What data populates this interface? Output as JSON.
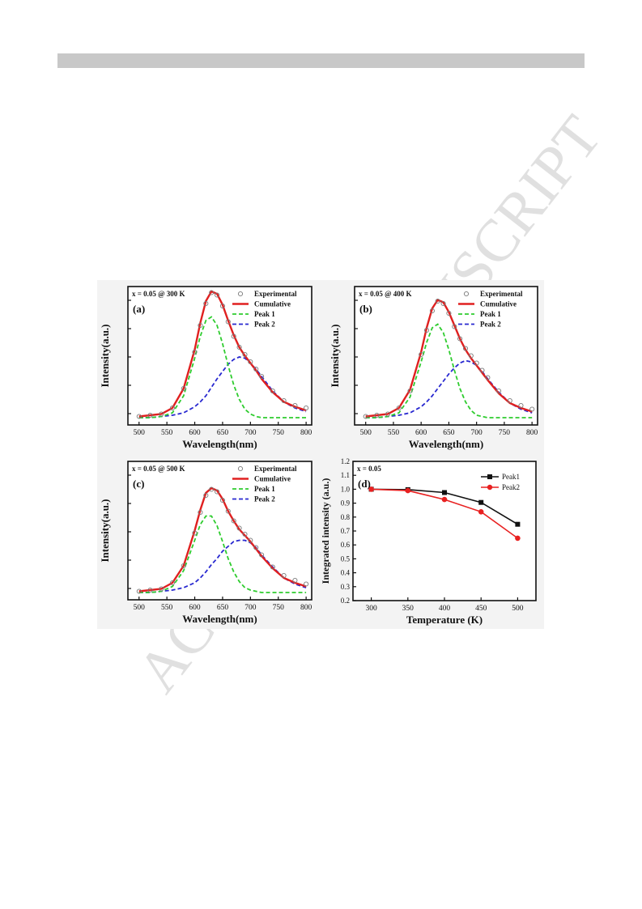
{
  "watermark": {
    "text": "ACCEPTED MANUSCRIPT",
    "color": "#d0d0d0"
  },
  "figure": {
    "background": "#f3f3f3",
    "colors": {
      "experimental": "#7a7a7a",
      "cumulative": "#e02020",
      "peak1": "#2ecc2e",
      "peak2": "#2828d0",
      "peak1_d": "#111111",
      "peak2_d": "#e82020"
    }
  },
  "chart_data": [
    {
      "type": "line",
      "panel_label": "(a)",
      "condition": "x = 0.05 @ 300 K",
      "xlabel": "Wavelength(nm)",
      "ylabel": "Intensity(a.u.)",
      "xlim": [
        480,
        810
      ],
      "ylim": [
        -0.06,
        1.08
      ],
      "xticks": [
        500,
        550,
        600,
        650,
        700,
        750,
        800
      ],
      "legend": [
        "Experimental",
        "Cumulative",
        "Peak 1",
        "Peak 2"
      ],
      "legend_position": "top-right",
      "x": [
        500,
        520,
        540,
        560,
        580,
        600,
        610,
        620,
        630,
        640,
        650,
        660,
        670,
        680,
        690,
        700,
        710,
        720,
        740,
        760,
        780,
        800
      ],
      "series": [
        {
          "name": "Experimental",
          "values": [
            0.01,
            0.02,
            0.03,
            0.08,
            0.24,
            0.54,
            0.76,
            0.94,
            1.03,
            1.01,
            0.92,
            0.79,
            0.67,
            0.58,
            0.52,
            0.46,
            0.4,
            0.34,
            0.22,
            0.14,
            0.1,
            0.08
          ]
        },
        {
          "name": "Cumulative",
          "values": [
            0.01,
            0.02,
            0.03,
            0.08,
            0.24,
            0.56,
            0.78,
            0.96,
            1.04,
            1.02,
            0.93,
            0.8,
            0.68,
            0.58,
            0.51,
            0.45,
            0.39,
            0.32,
            0.21,
            0.13,
            0.09,
            0.06
          ]
        },
        {
          "name": "Peak 1",
          "values": [
            0.0,
            0.0,
            0.01,
            0.04,
            0.18,
            0.49,
            0.67,
            0.8,
            0.83,
            0.76,
            0.61,
            0.43,
            0.27,
            0.15,
            0.07,
            0.03,
            0.01,
            0.0,
            0.0,
            0.0,
            0.0,
            0.0
          ]
        },
        {
          "name": "Peak 2",
          "values": [
            0.0,
            0.0,
            0.01,
            0.02,
            0.04,
            0.09,
            0.13,
            0.18,
            0.25,
            0.32,
            0.38,
            0.44,
            0.48,
            0.5,
            0.49,
            0.45,
            0.4,
            0.34,
            0.22,
            0.13,
            0.08,
            0.05
          ]
        }
      ]
    },
    {
      "type": "line",
      "panel_label": "(b)",
      "condition": "x = 0.05 @ 400 K",
      "xlabel": "Wavelength(nm)",
      "ylabel": "Intensity(a.u.)",
      "xlim": [
        480,
        810
      ],
      "ylim": [
        -0.06,
        1.08
      ],
      "xticks": [
        500,
        550,
        600,
        650,
        700,
        750,
        800
      ],
      "legend": [
        "Experimental",
        "Cumulative",
        "Peak 1",
        "Peak 2"
      ],
      "legend_position": "top-right",
      "x": [
        500,
        520,
        540,
        560,
        580,
        600,
        610,
        620,
        630,
        640,
        650,
        660,
        670,
        680,
        690,
        700,
        710,
        720,
        740,
        760,
        780,
        800
      ],
      "series": [
        {
          "name": "Experimental",
          "values": [
            0.01,
            0.02,
            0.03,
            0.08,
            0.22,
            0.52,
            0.72,
            0.88,
            0.96,
            0.94,
            0.86,
            0.75,
            0.65,
            0.57,
            0.51,
            0.45,
            0.39,
            0.33,
            0.22,
            0.14,
            0.1,
            0.07
          ]
        },
        {
          "name": "Cumulative",
          "values": [
            0.01,
            0.02,
            0.03,
            0.08,
            0.23,
            0.54,
            0.74,
            0.9,
            0.97,
            0.95,
            0.87,
            0.76,
            0.65,
            0.56,
            0.49,
            0.43,
            0.37,
            0.31,
            0.2,
            0.12,
            0.08,
            0.05
          ]
        },
        {
          "name": "Peak 1",
          "values": [
            0.0,
            0.0,
            0.01,
            0.04,
            0.17,
            0.46,
            0.62,
            0.74,
            0.77,
            0.7,
            0.56,
            0.39,
            0.24,
            0.13,
            0.06,
            0.02,
            0.01,
            0.0,
            0.0,
            0.0,
            0.0,
            0.0
          ]
        },
        {
          "name": "Peak 2",
          "values": [
            0.0,
            0.0,
            0.01,
            0.02,
            0.04,
            0.09,
            0.13,
            0.18,
            0.24,
            0.3,
            0.36,
            0.41,
            0.45,
            0.47,
            0.46,
            0.43,
            0.38,
            0.32,
            0.21,
            0.12,
            0.07,
            0.04
          ]
        }
      ]
    },
    {
      "type": "line",
      "panel_label": "(c)",
      "condition": "x = 0.05 @ 500 K",
      "xlabel": "Wavelength(nm)",
      "ylabel": "Intensity(a.u.)",
      "xlim": [
        480,
        810
      ],
      "ylim": [
        -0.06,
        1.08
      ],
      "xticks": [
        500,
        550,
        600,
        650,
        700,
        750,
        800
      ],
      "legend": [
        "Experimental",
        "Cumulative",
        "Peak 1",
        "Peak 2"
      ],
      "legend_position": "top-right",
      "x": [
        500,
        520,
        540,
        560,
        580,
        600,
        610,
        620,
        630,
        640,
        650,
        660,
        670,
        680,
        690,
        700,
        710,
        720,
        740,
        760,
        780,
        800
      ],
      "series": [
        {
          "name": "Experimental",
          "values": [
            0.01,
            0.02,
            0.03,
            0.08,
            0.22,
            0.49,
            0.66,
            0.8,
            0.85,
            0.83,
            0.76,
            0.67,
            0.59,
            0.53,
            0.48,
            0.43,
            0.37,
            0.31,
            0.21,
            0.14,
            0.1,
            0.07
          ]
        },
        {
          "name": "Cumulative",
          "values": [
            0.01,
            0.02,
            0.03,
            0.08,
            0.22,
            0.51,
            0.68,
            0.82,
            0.86,
            0.84,
            0.77,
            0.67,
            0.59,
            0.52,
            0.47,
            0.42,
            0.36,
            0.3,
            0.2,
            0.12,
            0.08,
            0.05
          ]
        },
        {
          "name": "Peak 1",
          "values": [
            0.0,
            0.0,
            0.01,
            0.05,
            0.18,
            0.43,
            0.56,
            0.63,
            0.63,
            0.55,
            0.42,
            0.28,
            0.17,
            0.09,
            0.04,
            0.02,
            0.01,
            0.0,
            0.0,
            0.0,
            0.0,
            0.0
          ]
        },
        {
          "name": "Peak 2",
          "values": [
            0.0,
            0.0,
            0.01,
            0.02,
            0.04,
            0.08,
            0.12,
            0.17,
            0.23,
            0.28,
            0.34,
            0.38,
            0.42,
            0.43,
            0.43,
            0.41,
            0.37,
            0.31,
            0.21,
            0.12,
            0.07,
            0.04
          ]
        }
      ]
    },
    {
      "type": "line",
      "panel_label": "(d)",
      "condition": "x = 0.05",
      "xlabel": "Temperature (K)",
      "ylabel": "Integrated intensity (a.u.)",
      "xlim": [
        275,
        525
      ],
      "ylim": [
        0.2,
        1.2
      ],
      "xticks": [
        300,
        350,
        400,
        450,
        500
      ],
      "yticks": [
        0.2,
        0.3,
        0.4,
        0.5,
        0.6,
        0.7,
        0.8,
        0.9,
        1.0,
        1.1,
        1.2
      ],
      "legend": [
        "Peak1",
        "Peak2"
      ],
      "legend_position": "top-right",
      "x": [
        300,
        350,
        400,
        450,
        500
      ],
      "series": [
        {
          "name": "Peak1",
          "values": [
            1.0,
            0.997,
            0.976,
            0.905,
            0.748
          ]
        },
        {
          "name": "Peak2",
          "values": [
            1.0,
            0.99,
            0.926,
            0.838,
            0.648
          ]
        }
      ]
    }
  ]
}
